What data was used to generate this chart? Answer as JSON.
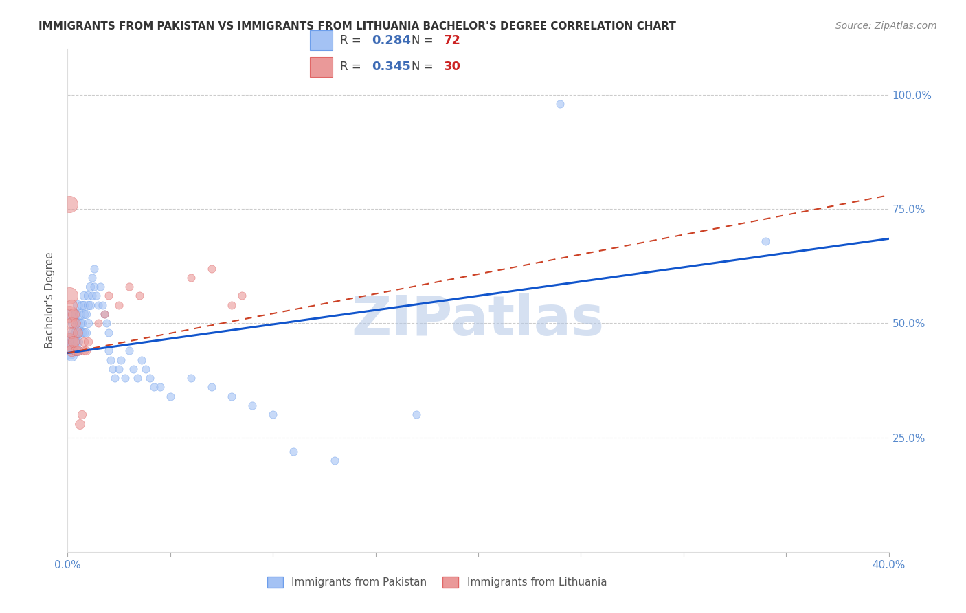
{
  "title": "IMMIGRANTS FROM PAKISTAN VS IMMIGRANTS FROM LITHUANIA BACHELOR'S DEGREE CORRELATION CHART",
  "source": "Source: ZipAtlas.com",
  "ylabel": "Bachelor's Degree",
  "x_min": 0.0,
  "x_max": 0.4,
  "y_min": 0.0,
  "y_max": 1.1,
  "pakistan_R": 0.284,
  "pakistan_N": 72,
  "lithuania_R": 0.345,
  "lithuania_N": 30,
  "pakistan_color": "#a4c2f4",
  "pakistan_edge_color": "#6d9eeb",
  "lithuania_color": "#ea9999",
  "lithuania_edge_color": "#e06666",
  "trend_pakistan_color": "#1155cc",
  "trend_lithuania_color": "#cc4125",
  "watermark": "ZIPatlas",
  "watermark_color_r": 180,
  "watermark_color_g": 200,
  "watermark_color_b": 230,
  "pakistan_scatter": [
    [
      0.001,
      0.455
    ],
    [
      0.001,
      0.44
    ],
    [
      0.002,
      0.455
    ],
    [
      0.002,
      0.445
    ],
    [
      0.002,
      0.43
    ],
    [
      0.002,
      0.52
    ],
    [
      0.003,
      0.46
    ],
    [
      0.003,
      0.47
    ],
    [
      0.003,
      0.48
    ],
    [
      0.003,
      0.5
    ],
    [
      0.004,
      0.48
    ],
    [
      0.004,
      0.52
    ],
    [
      0.004,
      0.46
    ],
    [
      0.004,
      0.44
    ],
    [
      0.005,
      0.5
    ],
    [
      0.005,
      0.54
    ],
    [
      0.005,
      0.46
    ],
    [
      0.005,
      0.44
    ],
    [
      0.006,
      0.5
    ],
    [
      0.006,
      0.48
    ],
    [
      0.006,
      0.52
    ],
    [
      0.007,
      0.54
    ],
    [
      0.007,
      0.5
    ],
    [
      0.007,
      0.48
    ],
    [
      0.008,
      0.56
    ],
    [
      0.008,
      0.52
    ],
    [
      0.008,
      0.48
    ],
    [
      0.008,
      0.54
    ],
    [
      0.009,
      0.52
    ],
    [
      0.009,
      0.48
    ],
    [
      0.01,
      0.54
    ],
    [
      0.01,
      0.5
    ],
    [
      0.01,
      0.56
    ],
    [
      0.011,
      0.58
    ],
    [
      0.011,
      0.54
    ],
    [
      0.012,
      0.6
    ],
    [
      0.012,
      0.56
    ],
    [
      0.013,
      0.62
    ],
    [
      0.013,
      0.58
    ],
    [
      0.014,
      0.56
    ],
    [
      0.015,
      0.54
    ],
    [
      0.016,
      0.58
    ],
    [
      0.017,
      0.54
    ],
    [
      0.018,
      0.52
    ],
    [
      0.019,
      0.5
    ],
    [
      0.02,
      0.48
    ],
    [
      0.02,
      0.44
    ],
    [
      0.021,
      0.42
    ],
    [
      0.022,
      0.4
    ],
    [
      0.023,
      0.38
    ],
    [
      0.025,
      0.4
    ],
    [
      0.026,
      0.42
    ],
    [
      0.028,
      0.38
    ],
    [
      0.03,
      0.44
    ],
    [
      0.032,
      0.4
    ],
    [
      0.034,
      0.38
    ],
    [
      0.036,
      0.42
    ],
    [
      0.038,
      0.4
    ],
    [
      0.04,
      0.38
    ],
    [
      0.042,
      0.36
    ],
    [
      0.045,
      0.36
    ],
    [
      0.05,
      0.34
    ],
    [
      0.06,
      0.38
    ],
    [
      0.07,
      0.36
    ],
    [
      0.08,
      0.34
    ],
    [
      0.09,
      0.32
    ],
    [
      0.1,
      0.3
    ],
    [
      0.11,
      0.22
    ],
    [
      0.13,
      0.2
    ],
    [
      0.17,
      0.3
    ],
    [
      0.24,
      0.98
    ],
    [
      0.34,
      0.68
    ]
  ],
  "lithuania_scatter": [
    [
      0.001,
      0.76
    ],
    [
      0.001,
      0.56
    ],
    [
      0.001,
      0.52
    ],
    [
      0.001,
      0.46
    ],
    [
      0.002,
      0.54
    ],
    [
      0.002,
      0.5
    ],
    [
      0.002,
      0.48
    ],
    [
      0.002,
      0.44
    ],
    [
      0.003,
      0.52
    ],
    [
      0.003,
      0.46
    ],
    [
      0.004,
      0.5
    ],
    [
      0.004,
      0.44
    ],
    [
      0.005,
      0.48
    ],
    [
      0.005,
      0.44
    ],
    [
      0.006,
      0.28
    ],
    [
      0.007,
      0.3
    ],
    [
      0.008,
      0.46
    ],
    [
      0.008,
      0.44
    ],
    [
      0.009,
      0.44
    ],
    [
      0.01,
      0.46
    ],
    [
      0.015,
      0.5
    ],
    [
      0.018,
      0.52
    ],
    [
      0.02,
      0.56
    ],
    [
      0.025,
      0.54
    ],
    [
      0.03,
      0.58
    ],
    [
      0.035,
      0.56
    ],
    [
      0.06,
      0.6
    ],
    [
      0.07,
      0.62
    ],
    [
      0.08,
      0.54
    ],
    [
      0.085,
      0.56
    ]
  ],
  "trend_pakistan_x0": 0.0,
  "trend_pakistan_y0": 0.435,
  "trend_pakistan_x1": 0.4,
  "trend_pakistan_y1": 0.685,
  "trend_lithuania_x0": 0.0,
  "trend_lithuania_y0": 0.435,
  "trend_lithuania_x1": 0.4,
  "trend_lithuania_y1": 0.78
}
